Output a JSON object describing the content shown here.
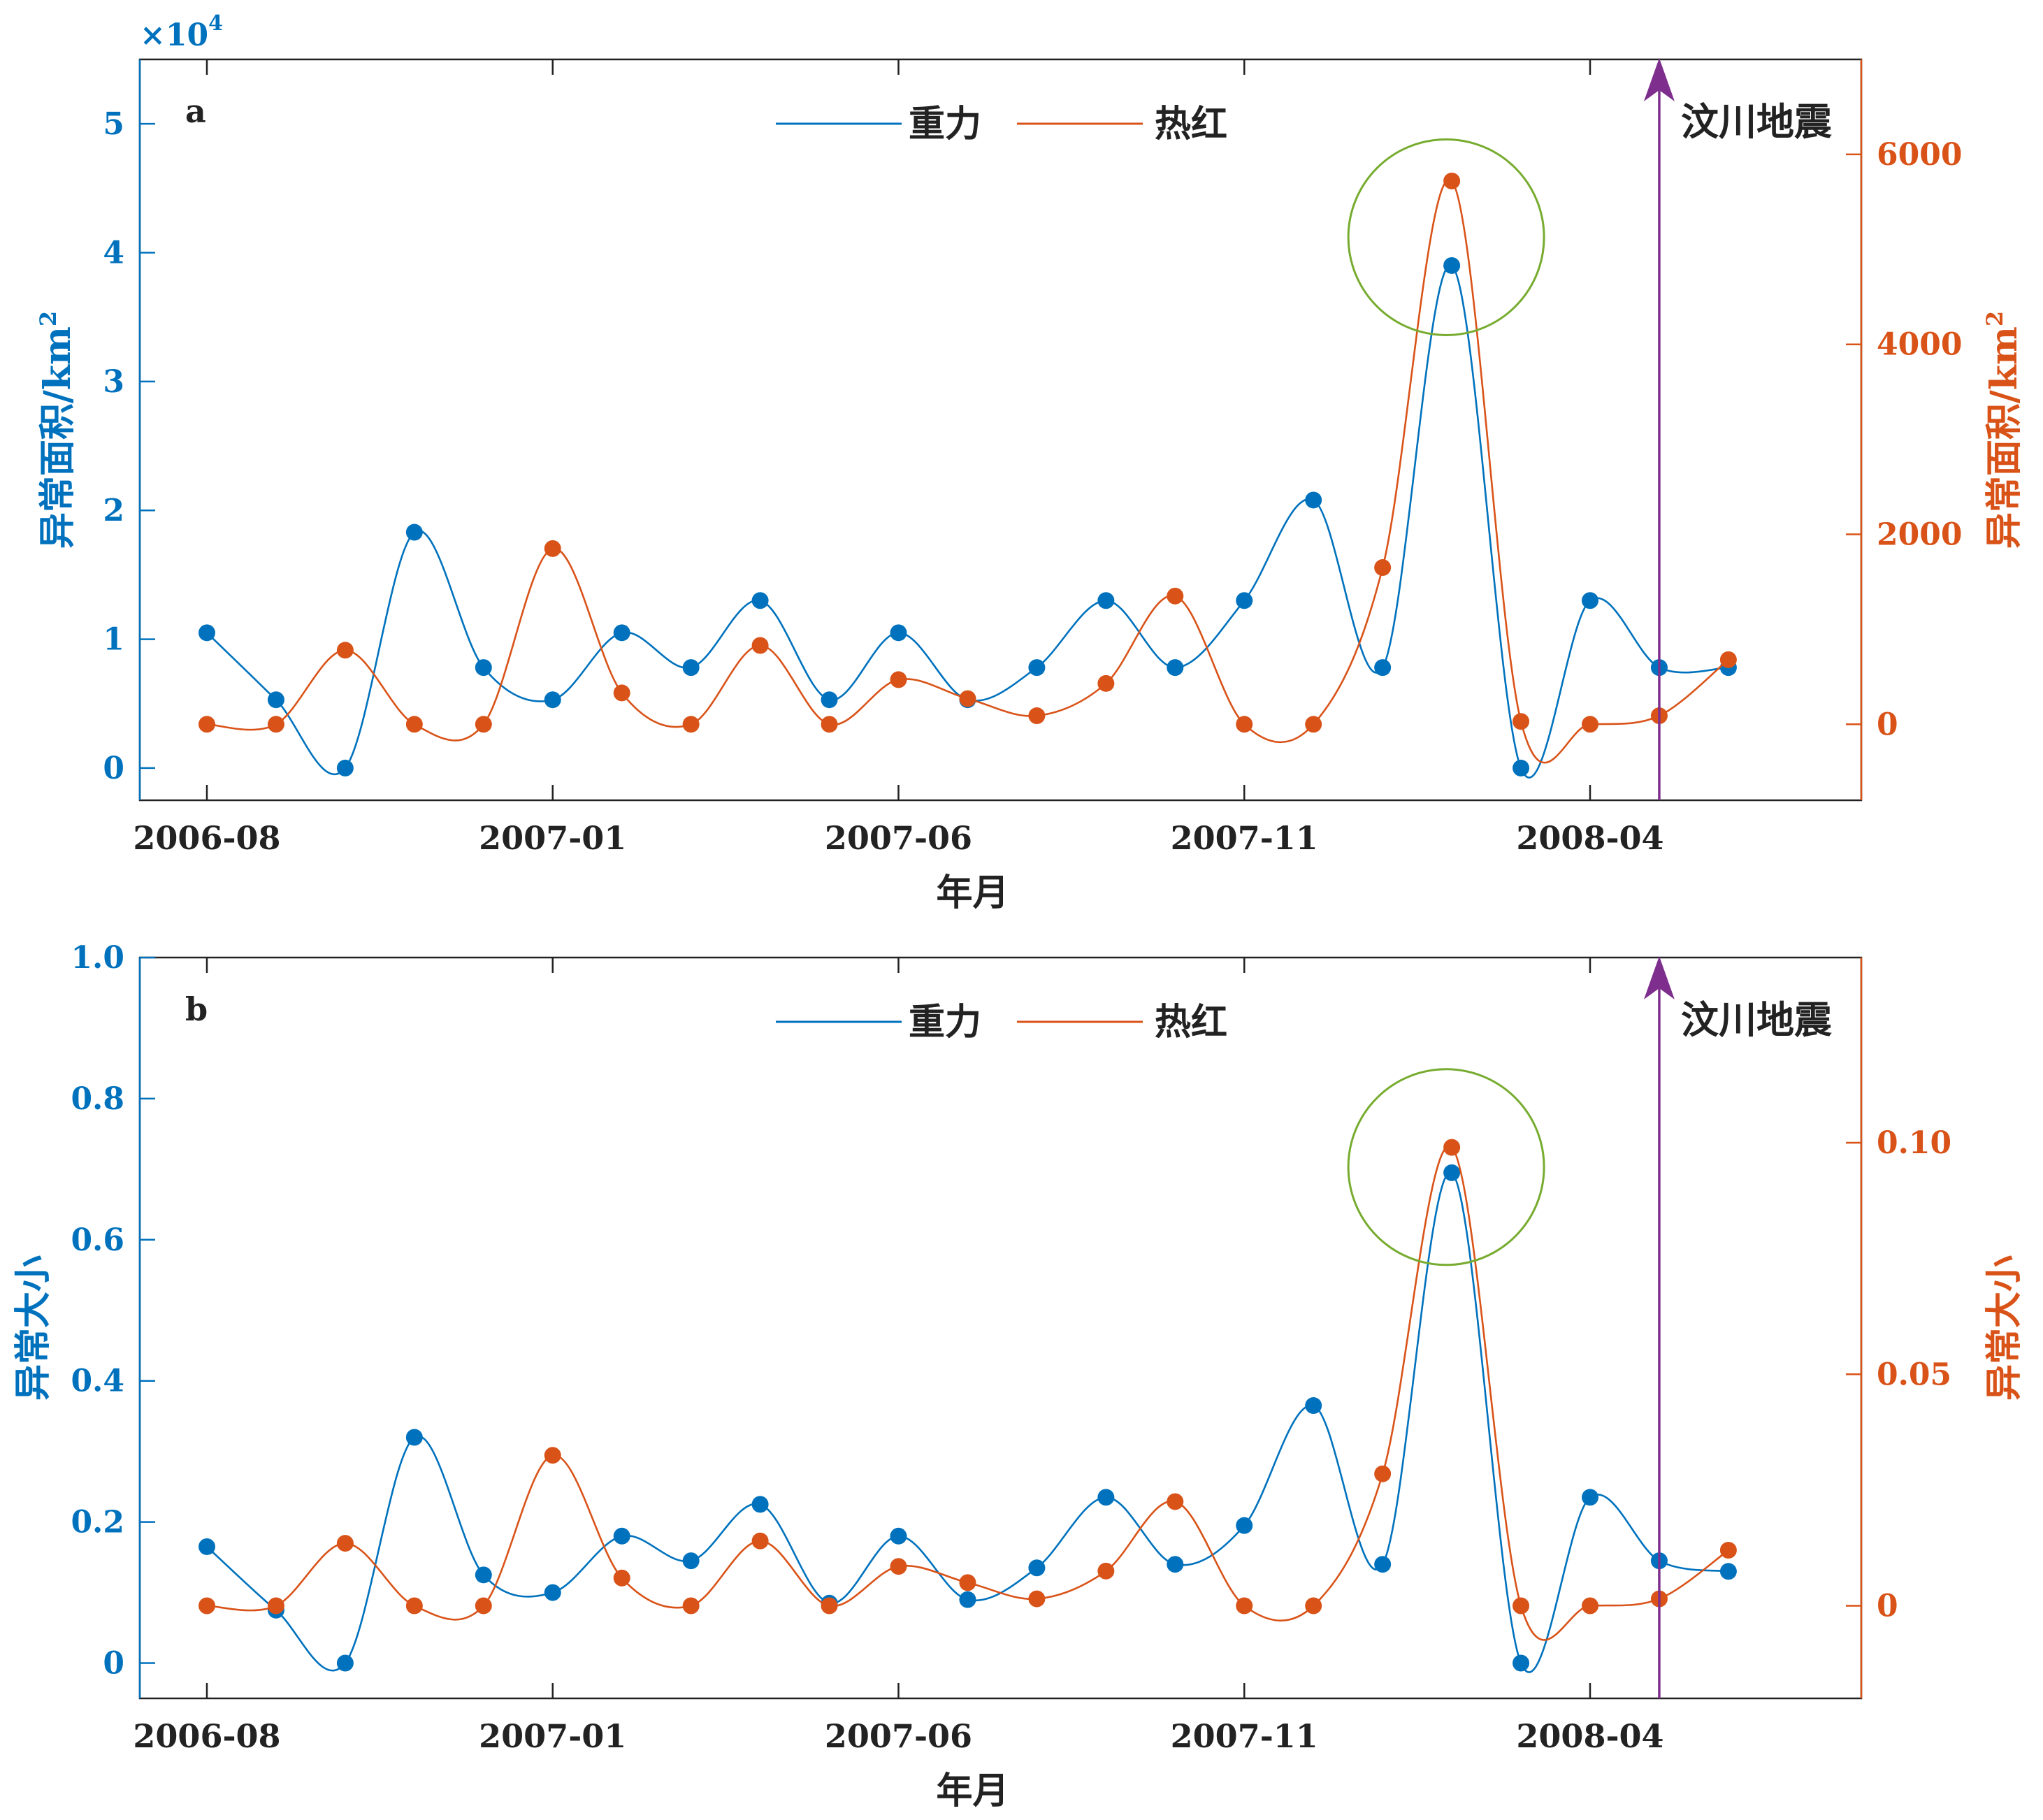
{
  "chart_data": [
    {
      "type": "line",
      "panel_label": "a",
      "x": [
        "2006-08",
        "2006-09",
        "2006-10",
        "2006-11",
        "2006-12",
        "2007-01",
        "2007-02",
        "2007-03",
        "2007-04",
        "2007-05",
        "2007-06",
        "2007-07",
        "2007-08",
        "2007-09",
        "2007-10",
        "2007-11",
        "2007-12",
        "2008-01",
        "2008-02",
        "2008-03",
        "2008-04",
        "2008-05",
        "2008-06"
      ],
      "xticks": [
        "2006-08",
        "2007-01",
        "2007-06",
        "2007-11",
        "2008-04"
      ],
      "xlabel": "年月",
      "multiplier_label": "×10",
      "multiplier_exp": "4",
      "left_axis": {
        "label": "异常面积/km",
        "label_sup": "2",
        "color": "#0072BD",
        "ylim": [
          -2500,
          55000
        ],
        "ticks": [
          0,
          10000,
          20000,
          30000,
          40000,
          50000
        ],
        "tick_labels": [
          "0",
          "1",
          "2",
          "3",
          "4",
          "5"
        ]
      },
      "right_axis": {
        "label": "异常面积/km",
        "label_sup": "2",
        "color": "#D95319",
        "ylim": [
          -800,
          7000
        ],
        "ticks": [
          0,
          2000,
          4000,
          6000
        ],
        "tick_labels": [
          "0",
          "2000",
          "4000",
          "6000"
        ]
      },
      "series": [
        {
          "name": "重力",
          "axis": "left",
          "color": "#0072BD",
          "values": [
            10500,
            5300,
            0,
            18300,
            7800,
            5300,
            10500,
            7800,
            13000,
            5300,
            10500,
            5300,
            7800,
            13000,
            7800,
            13000,
            20800,
            7800,
            39000,
            0,
            13000,
            7800,
            7800
          ]
        },
        {
          "name": "热红",
          "axis": "right",
          "color": "#D95319",
          "values": [
            0,
            0,
            780,
            0,
            0,
            1850,
            330,
            0,
            830,
            0,
            470,
            270,
            90,
            430,
            1350,
            0,
            0,
            1650,
            5720,
            30,
            0,
            90,
            680
          ]
        }
      ],
      "event": {
        "label": "汶川地震",
        "x": "2008-05",
        "color": "#7E2F8E"
      },
      "highlight": {
        "x": "2008-02",
        "color": "#77AC30"
      }
    },
    {
      "type": "line",
      "panel_label": "b",
      "x": [
        "2006-08",
        "2006-09",
        "2006-10",
        "2006-11",
        "2006-12",
        "2007-01",
        "2007-02",
        "2007-03",
        "2007-04",
        "2007-05",
        "2007-06",
        "2007-07",
        "2007-08",
        "2007-09",
        "2007-10",
        "2007-11",
        "2007-12",
        "2008-01",
        "2008-02",
        "2008-03",
        "2008-04",
        "2008-05",
        "2008-06"
      ],
      "xticks": [
        "2006-08",
        "2007-01",
        "2007-06",
        "2007-11",
        "2008-04"
      ],
      "xlabel": "年月",
      "left_axis": {
        "label": "异常大小",
        "color": "#0072BD",
        "ylim": [
          -0.05,
          1.0
        ],
        "ticks": [
          0,
          0.2,
          0.4,
          0.6,
          0.8,
          1.0
        ],
        "tick_labels": [
          "0",
          "0.2",
          "0.4",
          "0.6",
          "0.8",
          "1.0"
        ]
      },
      "right_axis": {
        "label": "异常大小",
        "color": "#D95319",
        "ylim": [
          -0.02,
          0.14
        ],
        "ticks": [
          0,
          0.05,
          0.1
        ],
        "tick_labels": [
          "0",
          "0.05",
          "0.10"
        ]
      },
      "series": [
        {
          "name": "重力",
          "axis": "left",
          "color": "#0072BD",
          "values": [
            0.165,
            0.075,
            0,
            0.32,
            0.125,
            0.1,
            0.18,
            0.145,
            0.225,
            0.085,
            0.18,
            0.09,
            0.135,
            0.235,
            0.14,
            0.195,
            0.365,
            0.14,
            0.695,
            0,
            0.235,
            0.145,
            0.13
          ]
        },
        {
          "name": "热红",
          "axis": "right",
          "color": "#D95319",
          "values": [
            0,
            0,
            0.0135,
            0,
            0,
            0.0325,
            0.006,
            0,
            0.014,
            0,
            0.0085,
            0.005,
            0.0015,
            0.0075,
            0.0225,
            0,
            0,
            0.0285,
            0.099,
            0,
            0,
            0.0015,
            0.012
          ]
        }
      ],
      "event": {
        "label": "汶川地震",
        "x": "2008-05",
        "color": "#7E2F8E"
      },
      "highlight": {
        "x": "2008-02",
        "color": "#77AC30"
      }
    }
  ]
}
